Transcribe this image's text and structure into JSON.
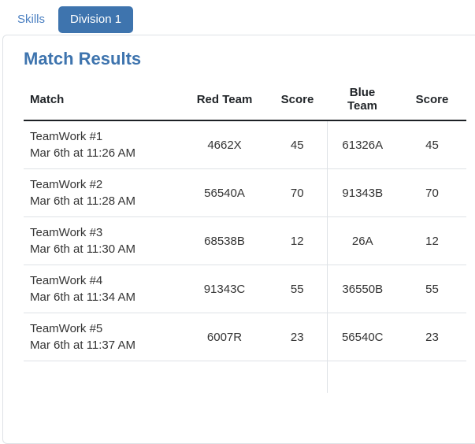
{
  "tabs": [
    {
      "label": "Skills",
      "active": false
    },
    {
      "label": "Division 1",
      "active": true
    }
  ],
  "panel": {
    "title": "Match Results",
    "table": {
      "headers": [
        "Match",
        "Red Team",
        "Score",
        "Blue Team",
        "Score"
      ],
      "rows": [
        {
          "match": "TeamWork #1",
          "time": "Mar 6th at 11:26 AM",
          "red_team": "4662X",
          "red_score": "45",
          "blue_team": "61326A",
          "blue_score": "45"
        },
        {
          "match": "TeamWork #2",
          "time": "Mar 6th at 11:28 AM",
          "red_team": "56540A",
          "red_score": "70",
          "blue_team": "91343B",
          "blue_score": "70"
        },
        {
          "match": "TeamWork #3",
          "time": "Mar 6th at 11:30 AM",
          "red_team": "68538B",
          "red_score": "12",
          "blue_team": "26A",
          "blue_score": "12"
        },
        {
          "match": "TeamWork #4",
          "time": "Mar 6th at 11:34 AM",
          "red_team": "91343C",
          "red_score": "55",
          "blue_team": "36550B",
          "blue_score": "55"
        },
        {
          "match": "TeamWork #5",
          "time": "Mar 6th at 11:37 AM",
          "red_team": "6007R",
          "red_score": "23",
          "blue_team": "56540C",
          "blue_score": "23"
        }
      ]
    }
  },
  "colors": {
    "accent": "#3e74ae",
    "link": "#4a7fc1",
    "tab_text": "#ffffff",
    "border": "#dee2e6",
    "header_border": "#1d2125",
    "text": "#333333"
  }
}
